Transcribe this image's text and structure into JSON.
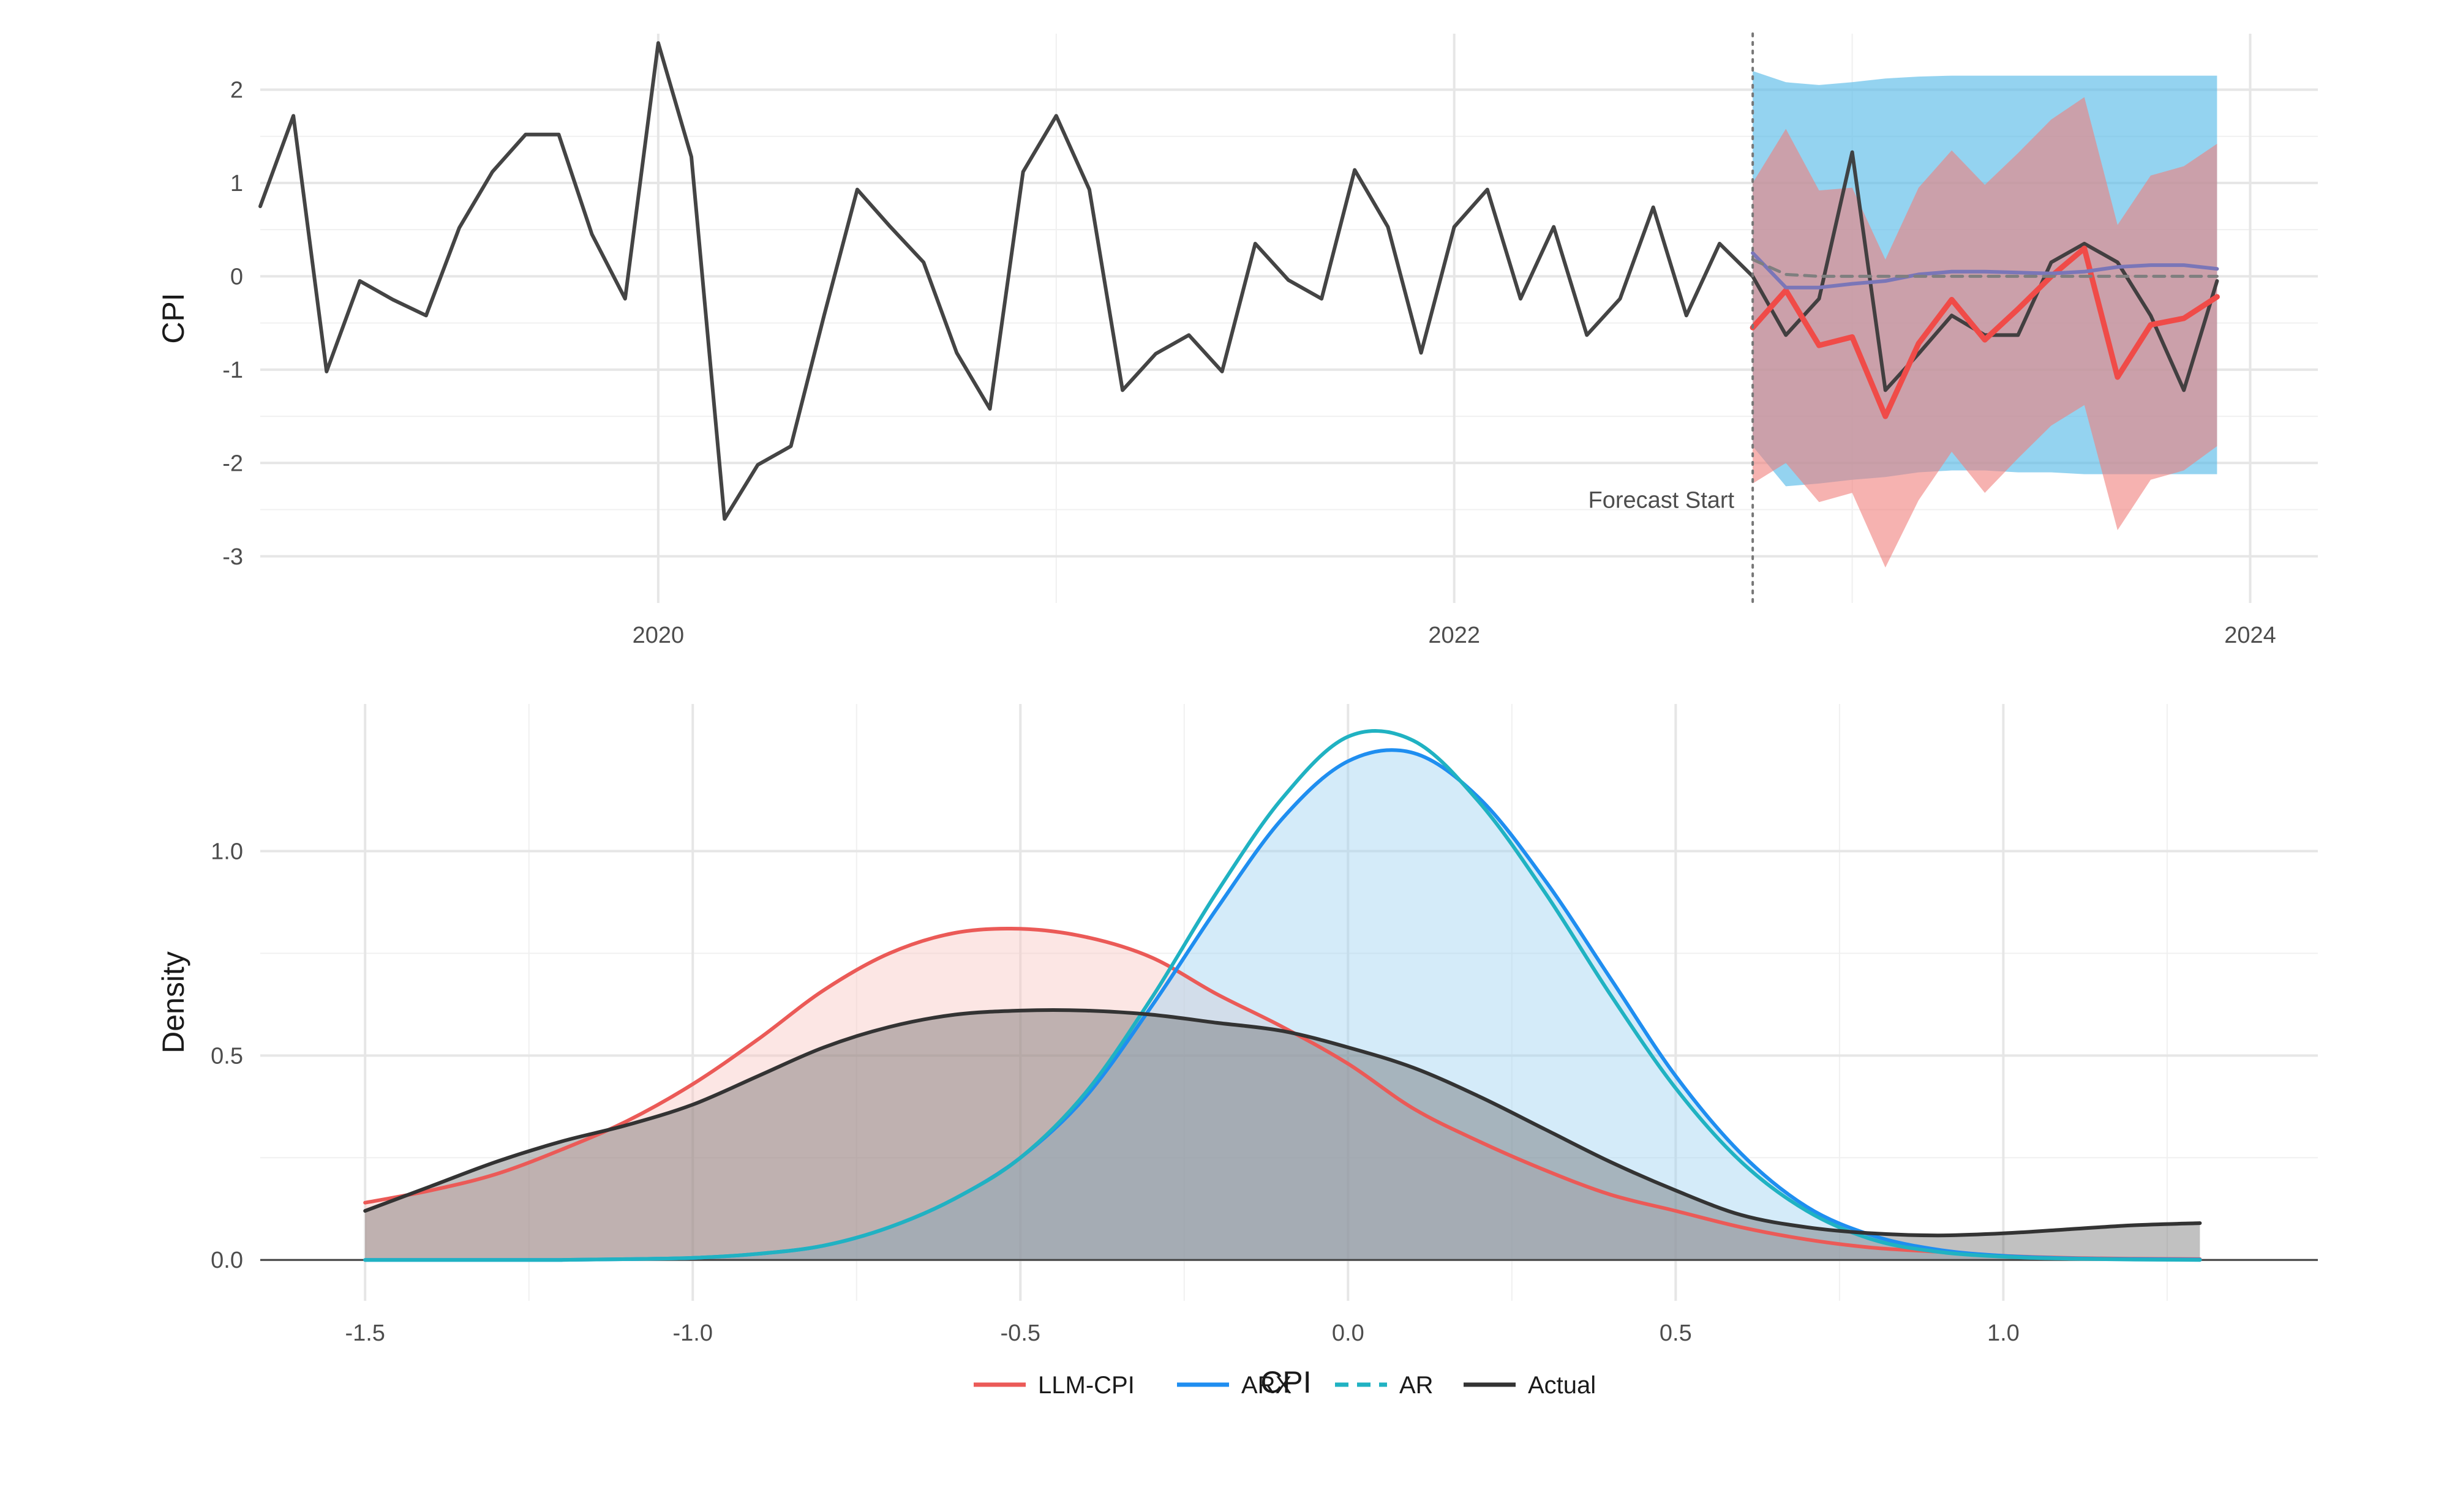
{
  "chart_data": [
    {
      "type": "line",
      "ylabel": "CPI",
      "xlabel": "",
      "xlim": [
        2019.0,
        2024.17
      ],
      "ylim": [
        -3.5,
        2.6
      ],
      "x_ticks": [
        2020,
        2022,
        2024
      ],
      "y_ticks": [
        -3,
        -2,
        -1,
        0,
        1,
        2
      ],
      "grid": true,
      "forecast_start": 2022.75,
      "annotation": "Forecast Start",
      "series": [
        {
          "color": "#3a3a3a",
          "x": [
            2019.0,
            2019.0833,
            2019.1667,
            2019.25,
            2019.3333,
            2019.4167,
            2019.5,
            2019.5833,
            2019.6667,
            2019.75,
            2019.8333,
            2019.9167,
            2020.0,
            2020.0833,
            2020.1667,
            2020.25,
            2020.3333,
            2020.4167,
            2020.5,
            2020.5833,
            2020.6667,
            2020.75,
            2020.8333,
            2020.9167,
            2021.0,
            2021.0833,
            2021.1667,
            2021.25,
            2021.3333,
            2021.4167,
            2021.5,
            2021.5833,
            2021.6667,
            2021.75,
            2021.8333,
            2021.9167,
            2022.0,
            2022.0833,
            2022.1667,
            2022.25,
            2022.3333,
            2022.4167,
            2022.5,
            2022.5833,
            2022.6667,
            2022.75,
            2022.8333,
            2022.9167,
            2023.0,
            2023.0833,
            2023.1667,
            2023.25,
            2023.3333,
            2023.4167,
            2023.5,
            2023.5833,
            2023.6667,
            2023.75,
            2023.8333,
            2023.9167
          ],
          "values": [
            0.75,
            1.72,
            -1.02,
            -0.05,
            -0.25,
            -0.42,
            0.52,
            1.12,
            1.52,
            1.52,
            0.45,
            -0.24,
            2.5,
            1.28,
            -2.6,
            -2.02,
            -1.82,
            -0.42,
            0.93,
            0.53,
            0.15,
            -0.82,
            -1.42,
            1.12,
            1.72,
            0.93,
            -1.22,
            -0.83,
            -0.63,
            -1.02,
            0.35,
            -0.04,
            -0.24,
            1.14,
            0.53,
            -0.82,
            0.53,
            0.93,
            -0.24,
            0.53,
            -0.63,
            -0.24,
            0.74,
            -0.42,
            0.35,
            0.0,
            -0.63,
            -0.24,
            1.33,
            -1.22,
            -0.83,
            -0.42,
            -0.63,
            -0.63,
            0.15,
            0.35,
            0.15,
            -0.42,
            -1.22,
            -0.05
          ]
        },
        {
          "color": "#f04b48",
          "x": [
            2022.75,
            2022.8333,
            2022.9167,
            2023.0,
            2023.0833,
            2023.1667,
            2023.25,
            2023.3333,
            2023.4167,
            2023.5,
            2023.5833,
            2023.6667,
            2023.75,
            2023.8333,
            2023.9167
          ],
          "values": [
            -0.55,
            -0.15,
            -0.74,
            -0.65,
            -1.5,
            -0.72,
            -0.25,
            -0.68,
            -0.35,
            0.0,
            0.3,
            -1.08,
            -0.52,
            -0.45,
            -0.22
          ]
        },
        {
          "color": "#7a76b8",
          "x": [
            2022.75,
            2022.8333,
            2022.9167,
            2023.0,
            2023.0833,
            2023.1667,
            2023.25,
            2023.3333,
            2023.4167,
            2023.5,
            2023.5833,
            2023.6667,
            2023.75,
            2023.8333,
            2023.9167
          ],
          "values": [
            0.25,
            -0.12,
            -0.12,
            -0.08,
            -0.05,
            0.02,
            0.05,
            0.05,
            0.04,
            0.03,
            0.05,
            0.1,
            0.12,
            0.12,
            0.08
          ]
        },
        {
          "color": "#7f7f7f",
          "dashed": true,
          "x": [
            2022.75,
            2022.8333,
            2022.9167,
            2023.0,
            2023.0833,
            2023.1667,
            2023.25,
            2023.3333,
            2023.4167,
            2023.5,
            2023.5833,
            2023.6667,
            2023.75,
            2023.8333,
            2023.9167
          ],
          "values": [
            0.18,
            0.02,
            0.0,
            0.0,
            0.0,
            0.0,
            0.0,
            0.0,
            0.0,
            0.0,
            0.0,
            0.0,
            0.0,
            0.0,
            0.0
          ]
        }
      ],
      "bands": [
        {
          "color": "#5bbce8",
          "opacity": 0.65,
          "x": [
            2022.75,
            2022.8333,
            2022.9167,
            2023.0,
            2023.0833,
            2023.1667,
            2023.25,
            2023.3333,
            2023.4167,
            2023.5,
            2023.5833,
            2023.6667,
            2023.75,
            2023.8333,
            2023.9167
          ],
          "upper": [
            2.2,
            2.08,
            2.05,
            2.08,
            2.12,
            2.14,
            2.15,
            2.15,
            2.15,
            2.15,
            2.15,
            2.15,
            2.15,
            2.15,
            2.15
          ],
          "lower": [
            -1.82,
            -2.25,
            -2.22,
            -2.18,
            -2.15,
            -2.1,
            -2.08,
            -2.08,
            -2.1,
            -2.1,
            -2.12,
            -2.12,
            -2.12,
            -2.12,
            -2.12
          ]
        },
        {
          "color": "#f07f7b",
          "opacity": 0.6,
          "x": [
            2022.75,
            2022.8333,
            2022.9167,
            2023.0,
            2023.0833,
            2023.1667,
            2023.25,
            2023.3333,
            2023.4167,
            2023.5,
            2023.5833,
            2023.6667,
            2023.75,
            2023.8333,
            2023.9167
          ],
          "upper": [
            1.0,
            1.58,
            0.92,
            0.95,
            0.18,
            0.95,
            1.35,
            0.98,
            1.32,
            1.68,
            1.92,
            0.55,
            1.08,
            1.18,
            1.42
          ],
          "lower": [
            -2.22,
            -2.0,
            -2.42,
            -2.32,
            -3.12,
            -2.4,
            -1.88,
            -2.32,
            -1.95,
            -1.6,
            -1.38,
            -2.72,
            -2.18,
            -2.08,
            -1.82
          ]
        }
      ]
    },
    {
      "type": "area",
      "xlabel": "CPI",
      "ylabel": "Density",
      "xlim": [
        -1.66,
        1.48
      ],
      "ylim": [
        -0.1,
        1.36
      ],
      "x_ticks": [
        -1.5,
        -1.0,
        -0.5,
        0.0,
        0.5,
        1.0
      ],
      "x_tick_labels": [
        "-1.5",
        "-1.0",
        "-0.5",
        "0.0",
        "0.5",
        "1.0"
      ],
      "y_ticks": [
        0.0,
        0.5,
        1.0
      ],
      "y_tick_labels": [
        "0.0",
        "0.5",
        "1.0"
      ],
      "grid": true,
      "legend_position": "bottom",
      "x": [
        -1.5,
        -1.4,
        -1.3,
        -1.2,
        -1.1,
        -1.0,
        -0.9,
        -0.8,
        -0.7,
        -0.6,
        -0.5,
        -0.4,
        -0.3,
        -0.2,
        -0.1,
        0.0,
        0.1,
        0.2,
        0.3,
        0.4,
        0.5,
        0.6,
        0.7,
        0.8,
        0.9,
        1.0,
        1.1,
        1.2,
        1.3
      ],
      "series": [
        {
          "name": "LLM-CPI",
          "color": "#eb5a57",
          "fill": "#f8c7c4",
          "fill_opacity": 0.45,
          "values": [
            0.14,
            0.17,
            0.21,
            0.27,
            0.34,
            0.43,
            0.54,
            0.66,
            0.75,
            0.8,
            0.81,
            0.79,
            0.74,
            0.65,
            0.57,
            0.48,
            0.37,
            0.29,
            0.22,
            0.16,
            0.12,
            0.08,
            0.05,
            0.03,
            0.02,
            0.01,
            0.005,
            0.003,
            0.002
          ]
        },
        {
          "name": "ARX",
          "color": "#1f8ef0",
          "fill": "#9fd3f2",
          "fill_opacity": 0.45,
          "values": [
            0.0,
            0.0,
            0.0,
            0.0,
            0.002,
            0.005,
            0.015,
            0.035,
            0.08,
            0.15,
            0.25,
            0.4,
            0.62,
            0.86,
            1.08,
            1.22,
            1.24,
            1.13,
            0.93,
            0.69,
            0.45,
            0.26,
            0.13,
            0.06,
            0.025,
            0.01,
            0.004,
            0.002,
            0.001
          ]
        },
        {
          "name": "AR",
          "color": "#20b2c2",
          "dashed": true,
          "values": [
            0.0,
            0.0,
            0.0,
            0.0,
            0.002,
            0.005,
            0.015,
            0.035,
            0.08,
            0.15,
            0.25,
            0.41,
            0.64,
            0.9,
            1.13,
            1.28,
            1.27,
            1.12,
            0.9,
            0.65,
            0.42,
            0.24,
            0.12,
            0.05,
            0.02,
            0.008,
            0.003,
            0.001,
            0.0
          ]
        },
        {
          "name": "Actual",
          "color": "#333333",
          "fill": "#5c5c5c",
          "fill_opacity": 0.38,
          "values": [
            0.12,
            0.18,
            0.24,
            0.29,
            0.33,
            0.38,
            0.45,
            0.52,
            0.57,
            0.6,
            0.61,
            0.61,
            0.6,
            0.58,
            0.56,
            0.52,
            0.47,
            0.4,
            0.32,
            0.24,
            0.17,
            0.11,
            0.08,
            0.065,
            0.06,
            0.065,
            0.075,
            0.085,
            0.09
          ]
        }
      ]
    }
  ]
}
